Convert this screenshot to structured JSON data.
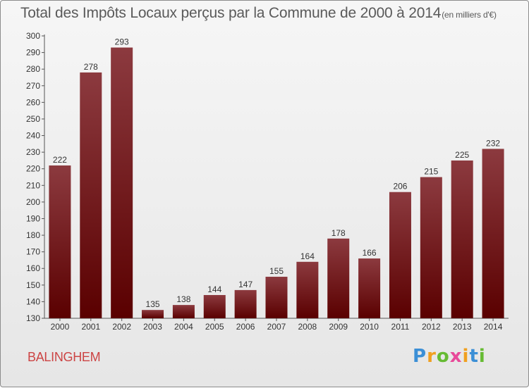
{
  "chart_data": {
    "type": "bar",
    "title": "Total des Impôts Locaux perçus par la Commune de 2000 à 2014",
    "subtitle": "(en milliers d'€)",
    "categories": [
      "2000",
      "2001",
      "2002",
      "2003",
      "2004",
      "2005",
      "2006",
      "2007",
      "2008",
      "2009",
      "2010",
      "2011",
      "2012",
      "2013",
      "2014"
    ],
    "values": [
      222,
      278,
      293,
      135,
      138,
      144,
      147,
      155,
      164,
      178,
      166,
      206,
      215,
      225,
      232
    ],
    "ylim": [
      130,
      300
    ],
    "yticks": [
      130,
      140,
      150,
      160,
      170,
      180,
      190,
      200,
      210,
      220,
      230,
      240,
      250,
      260,
      270,
      280,
      290,
      300
    ],
    "xlabel": "",
    "ylabel": "",
    "grid": false,
    "colors": {
      "bar_top": "#8c3a3f",
      "bar_bottom": "#5a0000",
      "axis": "#555555",
      "label": "#333333"
    }
  },
  "footer": {
    "commune": "BALINGHEM",
    "logo_letters": [
      "P",
      "r",
      "o",
      "x",
      "i",
      "t",
      "i"
    ],
    "logo_colors": [
      "#3b8fd6",
      "#f0a020",
      "#66bb33",
      "#e84a9a",
      "#f0a020",
      "#3b8fd6",
      "#66bb33"
    ]
  }
}
